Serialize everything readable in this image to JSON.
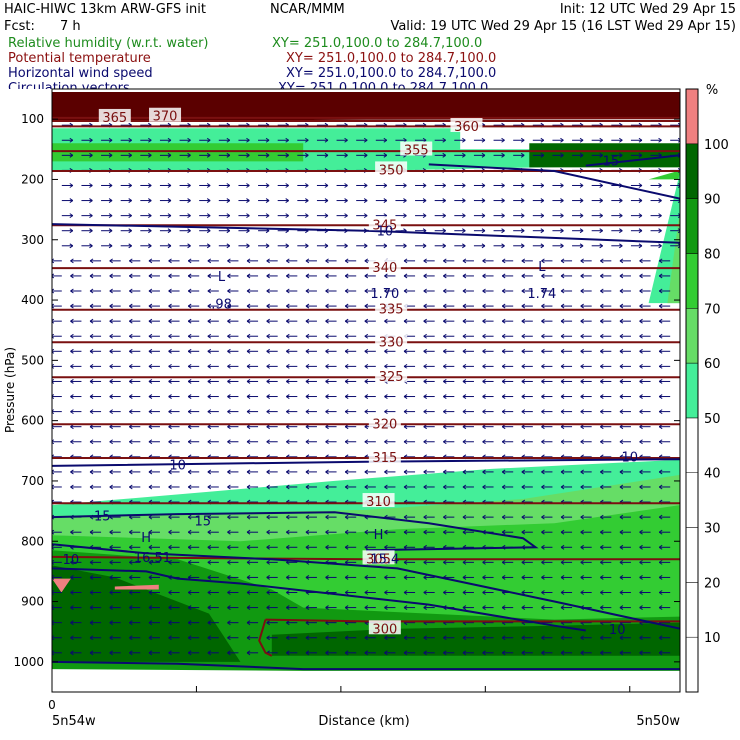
{
  "header": {
    "title_left": "HAIC-HIWC 13km ARW-GFS init",
    "title_center": "NCAR/MMM",
    "init": "Init: 12 UTC Wed 29 Apr 15",
    "fcst_label": "Fcst:",
    "fcst_value": "7 h",
    "valid": "Valid: 19 UTC Wed 29 Apr 15 (16 LST Wed 29 Apr 15)"
  },
  "fields": [
    {
      "name": "Relative humidity (w.r.t. water)",
      "xy": "XY= 251.0,100.0 to 284.7,100.0",
      "color": "#1e8c1e"
    },
    {
      "name": "Potential temperature",
      "xy": "XY= 251.0,100.0 to 284.7,100.0",
      "color": "#8b1010"
    },
    {
      "name": "Horizontal wind speed",
      "xy": "XY= 251.0,100.0 to 284.7,100.0",
      "color": "#0a0a6e"
    },
    {
      "name": "Circulation vectors",
      "xy": "XY= 251.0,100.0 to 284.7,100.0",
      "color": "#0a0a6e"
    }
  ],
  "chart_data": {
    "type": "cross-section",
    "ylabel": "Pressure (hPa)",
    "xlabel": "Distance (km)",
    "x_start_tick": "0",
    "x_left_label": "5n54w",
    "x_right_label": "5n50w",
    "y_ticks": [
      100,
      200,
      300,
      400,
      500,
      600,
      700,
      800,
      900,
      1000
    ],
    "ylim": [
      1050,
      50
    ],
    "colorbar": {
      "unit": "%",
      "levels": [
        10,
        20,
        30,
        40,
        50,
        60,
        70,
        80,
        90,
        100
      ],
      "colors": [
        "#ffffff",
        "#ffffff",
        "#ffffff",
        "#ffffff",
        "#ffffff",
        "#44ee99",
        "#66dd66",
        "#33cc33",
        "#119911",
        "#006600",
        "#f08080"
      ],
      "labels": [
        "10",
        "20",
        "30",
        "40",
        "50",
        "60",
        "70",
        "80",
        "90",
        "100"
      ]
    },
    "theta_labels": [
      {
        "text": "365",
        "x": 0.1,
        "p": 98
      },
      {
        "text": "370",
        "x": 0.18,
        "p": 96
      },
      {
        "text": "360",
        "x": 0.66,
        "p": 113
      },
      {
        "text": "355",
        "x": 0.58,
        "p": 152
      },
      {
        "text": "350",
        "x": 0.54,
        "p": 185
      },
      {
        "text": "345",
        "x": 0.53,
        "p": 276
      },
      {
        "text": "340",
        "x": 0.53,
        "p": 347
      },
      {
        "text": "335",
        "x": 0.54,
        "p": 416
      },
      {
        "text": "330",
        "x": 0.54,
        "p": 470
      },
      {
        "text": "325",
        "x": 0.54,
        "p": 528
      },
      {
        "text": "320",
        "x": 0.53,
        "p": 606
      },
      {
        "text": "315",
        "x": 0.53,
        "p": 662
      },
      {
        "text": "310",
        "x": 0.52,
        "p": 735
      },
      {
        "text": "305",
        "x": 0.52,
        "p": 830
      },
      {
        "text": "300",
        "x": 0.53,
        "p": 946
      }
    ],
    "wind_labels": [
      {
        "text": "15",
        "x": 0.89,
        "p": 170
      },
      {
        "text": "10",
        "x": 0.53,
        "p": 286
      },
      {
        "text": "1.70",
        "x": 0.53,
        "p": 390
      },
      {
        "text": "1.74",
        "x": 0.78,
        "p": 390
      },
      {
        "text": ".98",
        "x": 0.27,
        "p": 407
      },
      {
        "text": "10",
        "x": 0.2,
        "p": 674
      },
      {
        "text": "10",
        "x": 0.92,
        "p": 661
      },
      {
        "text": "15",
        "x": 0.08,
        "p": 759
      },
      {
        "text": "15",
        "x": 0.24,
        "p": 767
      },
      {
        "text": "16.51",
        "x": 0.16,
        "p": 828
      },
      {
        "text": "15.4",
        "x": 0.53,
        "p": 830
      },
      {
        "text": "10",
        "x": 0.03,
        "p": 831
      },
      {
        "text": "10",
        "x": 0.9,
        "p": 947
      }
    ],
    "extrema": [
      {
        "text": "L",
        "x": 0.27,
        "p": 362
      },
      {
        "text": "L",
        "x": 0.78,
        "p": 345
      },
      {
        "text": "H",
        "x": 0.15,
        "p": 795
      },
      {
        "text": "H",
        "x": 0.52,
        "p": 790
      }
    ]
  }
}
